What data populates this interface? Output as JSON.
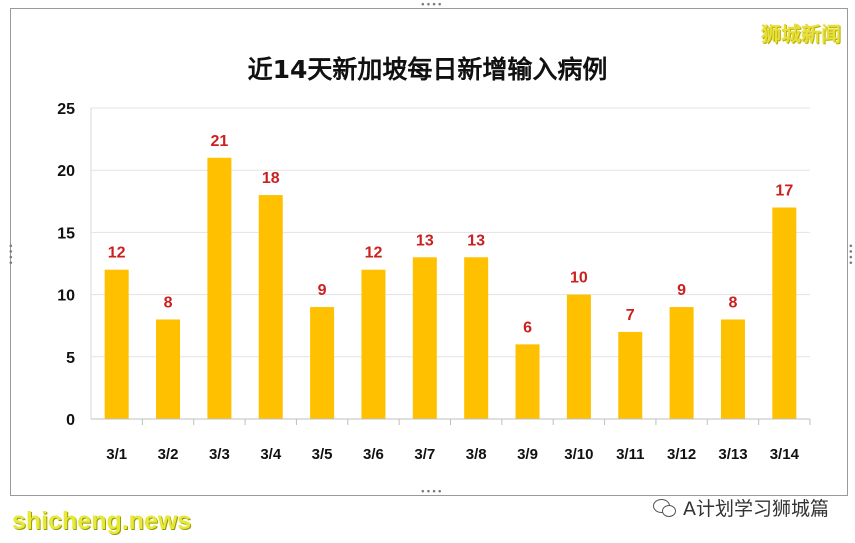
{
  "brand": "狮城新闻",
  "footer": {
    "site": "shicheng.news",
    "account": "A计划学习狮城篇"
  },
  "chart_data": {
    "type": "bar",
    "title": "近14天新加坡每日新增输入病例",
    "categories": [
      "3/1",
      "3/2",
      "3/3",
      "3/4",
      "3/5",
      "3/6",
      "3/7",
      "3/8",
      "3/9",
      "3/10",
      "3/11",
      "3/12",
      "3/13",
      "3/14"
    ],
    "values": [
      12,
      8,
      21,
      18,
      9,
      12,
      13,
      13,
      6,
      10,
      7,
      9,
      8,
      17
    ],
    "ylim": [
      0,
      25
    ],
    "yticks": [
      0,
      5,
      10,
      15,
      20,
      25
    ],
    "grid": true,
    "bar_color": "#ffc000",
    "label_color": "#cc1f1f",
    "xlabel": "",
    "ylabel": ""
  }
}
